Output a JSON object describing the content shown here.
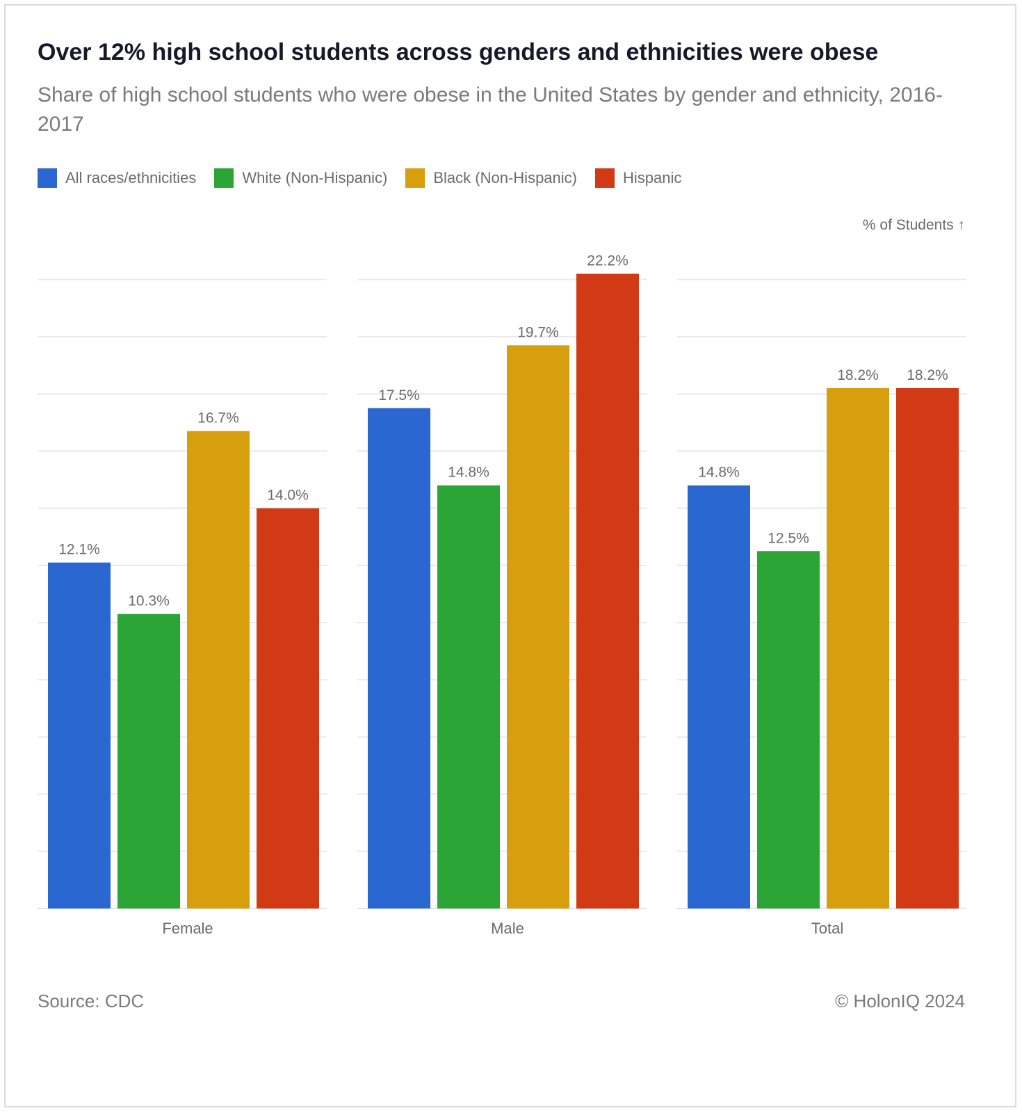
{
  "header": {
    "title": "Over 12% high school students across genders and ethnicities were obese",
    "subtitle": "Share of high school students who were obese in the United States by gender and ethnicity, 2016-2017"
  },
  "unit_label": "% of Students ↑",
  "footer": {
    "source": "Source: CDC",
    "copyright": "© HolonIQ 2024"
  },
  "chart_data": {
    "type": "bar",
    "title": "Over 12% high school students across genders and ethnicities were obese",
    "subtitle": "Share of high school students who were obese in the United States by gender and ethnicity, 2016-2017",
    "ylabel": "% of Students",
    "ylim": [
      0,
      22
    ],
    "grid": true,
    "legend_position": "top-left",
    "categories": [
      "Female",
      "Male",
      "Total"
    ],
    "series": [
      {
        "name": "All races/ethnicities",
        "color": "#2b67d1",
        "values": [
          12.1,
          17.5,
          14.8
        ],
        "labels": [
          "12.1%",
          "17.5%",
          "14.8%"
        ]
      },
      {
        "name": "White (Non-Hispanic)",
        "color": "#2ba636",
        "values": [
          10.3,
          14.8,
          12.5
        ],
        "labels": [
          "10.3%",
          "14.8%",
          "12.5%"
        ]
      },
      {
        "name": "Black (Non-Hispanic)",
        "color": "#d79e0e",
        "values": [
          16.7,
          19.7,
          18.2
        ],
        "labels": [
          "16.7%",
          "19.7%",
          "18.2%"
        ]
      },
      {
        "name": "Hispanic",
        "color": "#d13a15",
        "values": [
          14.0,
          22.2,
          18.2
        ],
        "labels": [
          "14.0%",
          "22.2%",
          "18.2%"
        ]
      }
    ]
  }
}
